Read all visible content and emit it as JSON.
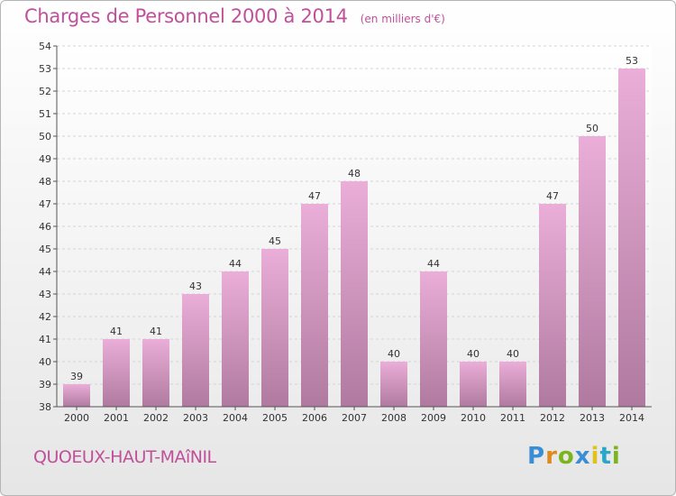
{
  "header": {
    "title": "Charges de Personnel 2000 à 2014",
    "subtitle": "(en milliers d'€)"
  },
  "footer": {
    "commune": "QUOEUX-HAUT-MAîNIL",
    "brand": "Proxiti",
    "brand_letters": [
      {
        "ch": "P",
        "color": "#3a8ed6"
      },
      {
        "ch": "r",
        "color": "#e08a1e"
      },
      {
        "ch": "o",
        "color": "#7bb51e"
      },
      {
        "ch": "x",
        "color": "#3a8ed6"
      },
      {
        "ch": "i",
        "color": "#e0c21e"
      },
      {
        "ch": "t",
        "color": "#2aa6c8"
      },
      {
        "ch": "i",
        "color": "#7bb51e"
      }
    ]
  },
  "chart_data": {
    "type": "bar",
    "title": "Charges de Personnel 2000 à 2014",
    "subtitle": "(en milliers d'€)",
    "xlabel": "",
    "ylabel": "",
    "categories": [
      "2000",
      "2001",
      "2002",
      "2003",
      "2004",
      "2005",
      "2006",
      "2007",
      "2008",
      "2009",
      "2010",
      "2011",
      "2012",
      "2013",
      "2014"
    ],
    "values": [
      39,
      41,
      41,
      43,
      44,
      45,
      47,
      48,
      40,
      44,
      40,
      40,
      47,
      50,
      53
    ],
    "ylim": [
      38,
      54
    ],
    "yticks": [
      38,
      39,
      40,
      41,
      42,
      43,
      44,
      45,
      46,
      47,
      48,
      49,
      50,
      51,
      52,
      53,
      54
    ],
    "grid": true,
    "legend": "none",
    "colors": {
      "bar_top": "#eaaed8",
      "bar_bottom": "#b07aa0",
      "title": "#c0509a",
      "grid": "#d4d4d4"
    }
  }
}
